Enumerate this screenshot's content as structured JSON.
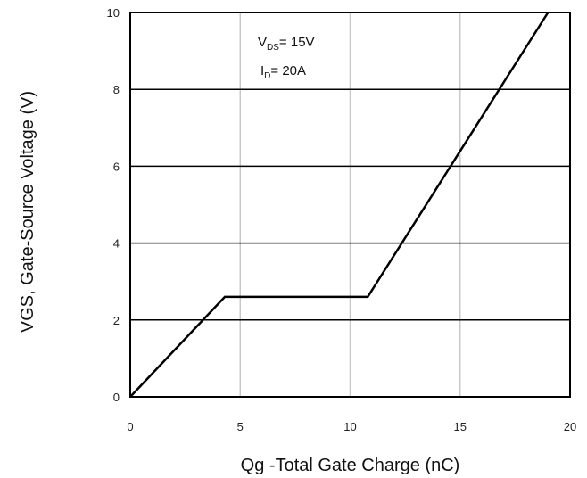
{
  "chart_data": {
    "type": "line",
    "title": "",
    "xlabel": "Qg -Total Gate Charge (nC)",
    "ylabel": "VGS, Gate-Source Voltage (V)",
    "xlim": [
      0,
      20
    ],
    "ylim": [
      0,
      10
    ],
    "xticks": [
      0,
      5,
      10,
      15,
      20
    ],
    "yticks": [
      0,
      2,
      4,
      6,
      8,
      10
    ],
    "grid": true,
    "series": [
      {
        "x": [
          0,
          4.3,
          10.8,
          19.0
        ],
        "y": [
          0,
          2.6,
          2.6,
          10.0
        ],
        "color": "#000000"
      }
    ],
    "annotations": [
      {
        "main": "V",
        "sub": "DS",
        "rest": "= 15V"
      },
      {
        "main": "I",
        "sub": "D",
        "rest": "= 20A"
      }
    ]
  }
}
